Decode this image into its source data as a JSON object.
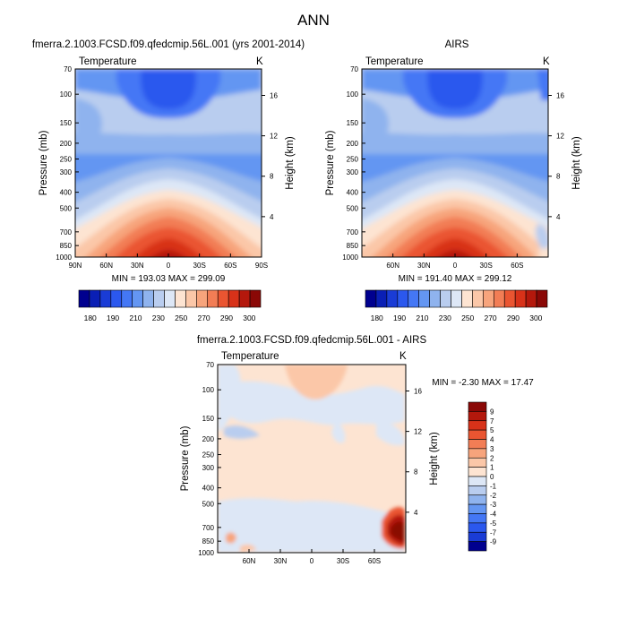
{
  "page_title": "ANN",
  "colors": {
    "bar": [
      "#00008f",
      "#0a1fb5",
      "#1a3cd6",
      "#2b58ee",
      "#4477f5",
      "#6496f2",
      "#8fb3ee",
      "#b9cdef",
      "#dde7f6",
      "#fde4d2",
      "#fbc7a8",
      "#f7a47c",
      "#f27d55",
      "#ea5531",
      "#d83219",
      "#b4180c",
      "#8a0806"
    ],
    "diff": [
      "#00008f",
      "#1a3cd6",
      "#2b58ee",
      "#4477f5",
      "#6496f2",
      "#8fb3ee",
      "#b9cdef",
      "#dde7f6",
      "#fde4d2",
      "#fbc7a8",
      "#f7a47c",
      "#f27d55",
      "#ea5531",
      "#d83219",
      "#b4180c",
      "#8a0806"
    ]
  },
  "chart_data": [
    {
      "type": "contour",
      "title": "fmerra.2.1003.FCSD.f09.qfedcmip.56L.001 (yrs 2001-2014)",
      "variable": "Temperature",
      "units": "K",
      "ylabel": "Pressure (mb)",
      "y2label": "Height (km)",
      "yticks": [
        "70",
        "100",
        "150",
        "200",
        "250",
        "300",
        "400",
        "500",
        "700",
        "850",
        "1000"
      ],
      "y2ticks": [
        "16",
        "12",
        "8",
        "4"
      ],
      "xticks": [
        "90N",
        "60N",
        "30N",
        "0",
        "30S",
        "60S",
        "90S"
      ],
      "ylim": [
        70,
        1000
      ],
      "xlim": [
        "90N",
        "90S"
      ],
      "min": 193.03,
      "max": 299.09,
      "stats": "MIN = 193.03   MAX = 299.09",
      "colorbar_labels": [
        "180",
        "190",
        "210",
        "230",
        "250",
        "270",
        "290",
        "300"
      ]
    },
    {
      "type": "contour",
      "title": "AIRS",
      "variable": "Temperature",
      "units": "K",
      "ylabel": "Pressure (mb)",
      "y2label": "Height (km)",
      "yticks": [
        "70",
        "100",
        "150",
        "200",
        "250",
        "300",
        "400",
        "500",
        "700",
        "850",
        "1000"
      ],
      "y2ticks": [
        "16",
        "12",
        "8",
        "4"
      ],
      "xticks": [
        "60N",
        "30N",
        "0",
        "30S",
        "60S"
      ],
      "ylim": [
        70,
        1000
      ],
      "min": 191.4,
      "max": 299.12,
      "stats": "MIN = 191.40   MAX = 299.12",
      "colorbar_labels": [
        "180",
        "190",
        "210",
        "230",
        "250",
        "270",
        "290",
        "300"
      ]
    },
    {
      "type": "contour",
      "title": "fmerra.2.1003.FCSD.f09.qfedcmip.56L.001 - AIRS",
      "variable": "Temperature",
      "units": "K",
      "ylabel": "Pressure (mb)",
      "y2label": "Height (km)",
      "yticks": [
        "70",
        "100",
        "150",
        "200",
        "250",
        "300",
        "400",
        "500",
        "700",
        "850",
        "1000"
      ],
      "y2ticks": [
        "16",
        "12",
        "8",
        "4"
      ],
      "xticks": [
        "60N",
        "30N",
        "0",
        "30S",
        "60S"
      ],
      "ylim": [
        70,
        1000
      ],
      "min": -2.3,
      "max": 17.47,
      "stats": "MIN = -2.30   MAX =  17.47",
      "colorbar_labels": [
        "9",
        "7",
        "5",
        "4",
        "3",
        "2",
        "1",
        "0",
        "-1",
        "-2",
        "-3",
        "-4",
        "-5",
        "-7",
        "-9"
      ]
    }
  ]
}
